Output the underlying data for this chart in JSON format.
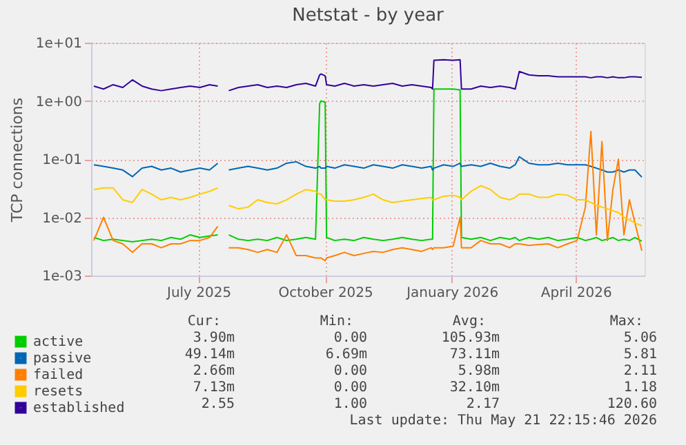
{
  "chart_data": {
    "type": "line",
    "title": "Netstat - by year",
    "ylabel": "TCP connections",
    "log": "y",
    "grid": true,
    "legend": "bottom left",
    "line_style": "solid",
    "marker": "none",
    "xlim": [
      "2025-04-14",
      "2026-05-21"
    ],
    "xticks": [
      {
        "value": "2025-07-01",
        "label": "July 2025"
      },
      {
        "value": "2025-10-01",
        "label": "October 2025"
      },
      {
        "value": "2026-01-01",
        "label": "January 2026"
      },
      {
        "value": "2026-04-01",
        "label": "April 2026"
      }
    ],
    "ylim": [
      0.001,
      10
    ],
    "yticks": [
      {
        "value": 0.001,
        "label": "1e-03"
      },
      {
        "value": 0.01,
        "label": "1e-02"
      },
      {
        "value": 0.1,
        "label": "1e-01"
      },
      {
        "value": 1,
        "label": "1e+00"
      },
      {
        "value": 10,
        "label": "1e+01"
      }
    ],
    "x": [
      "2025-04-16",
      "2025-04-23",
      "2025-04-30",
      "2025-05-07",
      "2025-05-14",
      "2025-05-21",
      "2025-05-28",
      "2025-06-04",
      "2025-06-11",
      "2025-06-18",
      "2025-06-25",
      "2025-07-02",
      "2025-07-09",
      "2025-07-15",
      "2025-07-19",
      "2025-07-23",
      "2025-07-30",
      "2025-08-06",
      "2025-08-13",
      "2025-08-20",
      "2025-08-27",
      "2025-09-03",
      "2025-09-10",
      "2025-09-17",
      "2025-09-24",
      "2025-09-27",
      "2025-09-28",
      "2025-10-01",
      "2025-10-02",
      "2025-10-08",
      "2025-10-15",
      "2025-10-22",
      "2025-10-29",
      "2025-11-05",
      "2025-11-12",
      "2025-11-19",
      "2025-11-26",
      "2025-12-03",
      "2025-12-10",
      "2025-12-17",
      "2025-12-18",
      "2025-12-19",
      "2025-12-26",
      "2026-01-02",
      "2026-01-07",
      "2026-01-08",
      "2026-01-15",
      "2026-01-22",
      "2026-01-29",
      "2026-02-05",
      "2026-02-12",
      "2026-02-16",
      "2026-02-19",
      "2026-02-26",
      "2026-03-05",
      "2026-03-12",
      "2026-03-19",
      "2026-03-26",
      "2026-04-02",
      "2026-04-08",
      "2026-04-12",
      "2026-04-16",
      "2026-04-20",
      "2026-04-24",
      "2026-04-28",
      "2026-05-02",
      "2026-05-06",
      "2026-05-10",
      "2026-05-14",
      "2026-05-19"
    ],
    "series": [
      {
        "name": "active",
        "color": "#00cc00",
        "values": [
          0.0045,
          0.004,
          0.0042,
          0.004,
          0.0038,
          0.004,
          0.0042,
          0.004,
          0.0045,
          0.0042,
          0.005,
          0.0045,
          0.0048,
          0.005,
          null,
          0.005,
          0.0042,
          0.004,
          0.0042,
          0.004,
          0.0045,
          0.004,
          0.0042,
          0.0045,
          0.0042,
          0.9,
          1.0,
          0.95,
          0.0045,
          0.004,
          0.0042,
          0.004,
          0.0045,
          0.0042,
          0.004,
          0.0042,
          0.0045,
          0.0042,
          0.004,
          0.0042,
          0.0042,
          1.6,
          1.6,
          1.6,
          1.55,
          0.0045,
          0.0042,
          0.0045,
          0.004,
          0.0045,
          0.0042,
          0.0045,
          0.004,
          0.0045,
          0.0042,
          0.0045,
          0.004,
          0.0042,
          0.0045,
          0.004,
          0.0042,
          0.0045,
          0.004,
          0.0042,
          0.0045,
          0.004,
          0.0042,
          0.004,
          0.0045,
          0.0039
        ]
      },
      {
        "name": "passive",
        "color": "#0066b3",
        "values": [
          0.08,
          0.075,
          0.07,
          0.065,
          0.05,
          0.07,
          0.075,
          0.065,
          0.07,
          0.06,
          0.065,
          0.07,
          0.065,
          0.085,
          null,
          0.065,
          0.07,
          0.075,
          0.07,
          0.065,
          0.07,
          0.085,
          0.09,
          0.075,
          0.07,
          0.075,
          0.07,
          0.07,
          0.075,
          0.07,
          0.08,
          0.075,
          0.07,
          0.08,
          0.075,
          0.07,
          0.08,
          0.075,
          0.07,
          0.075,
          0.065,
          0.07,
          0.08,
          0.075,
          0.085,
          0.075,
          0.08,
          0.075,
          0.085,
          0.075,
          0.07,
          0.08,
          0.11,
          0.085,
          0.08,
          0.08,
          0.085,
          0.08,
          0.08,
          0.08,
          0.075,
          0.07,
          0.065,
          0.06,
          0.06,
          0.065,
          0.06,
          0.065,
          0.065,
          0.049
        ]
      },
      {
        "name": "failed",
        "color": "#ff8000",
        "values": [
          0.004,
          0.01,
          0.004,
          0.0035,
          0.0025,
          0.0035,
          0.0035,
          0.003,
          0.0035,
          0.0035,
          0.004,
          0.004,
          0.0045,
          0.007,
          null,
          0.003,
          0.003,
          0.0028,
          0.0025,
          0.0028,
          0.0025,
          0.005,
          0.0022,
          0.0022,
          0.002,
          0.002,
          0.002,
          0.0018,
          0.002,
          0.0022,
          0.0025,
          0.0022,
          0.0024,
          0.0026,
          0.0025,
          0.0028,
          0.003,
          0.0028,
          0.0026,
          0.003,
          0.0028,
          0.003,
          0.003,
          0.0032,
          0.01,
          0.003,
          0.003,
          0.004,
          0.0035,
          0.0035,
          0.003,
          0.0035,
          0.0035,
          0.0033,
          0.0034,
          0.0035,
          0.003,
          0.0035,
          0.004,
          0.015,
          0.3,
          0.005,
          0.2,
          0.004,
          0.03,
          0.1,
          0.005,
          0.02,
          0.008,
          0.00266
        ]
      },
      {
        "name": "resets",
        "color": "#ffcc00",
        "values": [
          0.03,
          0.032,
          0.032,
          0.02,
          0.018,
          0.03,
          0.025,
          0.02,
          0.022,
          0.02,
          0.022,
          0.025,
          0.028,
          0.032,
          null,
          0.016,
          0.014,
          0.015,
          0.02,
          0.018,
          0.017,
          0.02,
          0.025,
          0.03,
          0.028,
          0.025,
          0.025,
          0.02,
          0.02,
          0.019,
          0.019,
          0.02,
          0.022,
          0.025,
          0.02,
          0.018,
          0.019,
          0.02,
          0.021,
          0.022,
          0.02,
          0.02,
          0.023,
          0.024,
          0.022,
          0.02,
          0.028,
          0.035,
          0.03,
          0.022,
          0.02,
          0.022,
          0.025,
          0.025,
          0.022,
          0.022,
          0.025,
          0.024,
          0.02,
          0.02,
          0.018,
          0.016,
          0.015,
          0.014,
          0.013,
          0.012,
          0.01,
          0.009,
          0.008,
          0.00713
        ]
      },
      {
        "name": "established",
        "color": "#330099",
        "values": [
          1.8,
          1.6,
          1.9,
          1.7,
          2.3,
          1.8,
          1.6,
          1.5,
          1.6,
          1.7,
          1.8,
          1.7,
          1.9,
          1.8,
          null,
          1.5,
          1.7,
          1.8,
          1.9,
          1.7,
          1.8,
          1.7,
          1.9,
          2.0,
          1.8,
          2.8,
          2.9,
          2.7,
          1.9,
          1.8,
          2.0,
          1.8,
          1.9,
          1.8,
          1.9,
          2.0,
          1.8,
          1.9,
          1.8,
          1.7,
          1.6,
          5.0,
          5.1,
          5.0,
          5.1,
          1.6,
          1.6,
          1.8,
          1.7,
          1.8,
          1.7,
          1.6,
          3.2,
          2.8,
          2.7,
          2.7,
          2.6,
          2.6,
          2.6,
          2.6,
          2.5,
          2.6,
          2.6,
          2.5,
          2.6,
          2.5,
          2.5,
          2.6,
          2.6,
          2.55
        ]
      }
    ],
    "annotations": [
      "Cur:",
      "Min:",
      "Avg:",
      "Max:",
      "3.90m",
      "0.00",
      "105.93m",
      "5.06",
      "49.14m",
      "6.69m",
      "73.11m",
      "5.81",
      "2.66m",
      "0.00",
      "5.98m",
      "2.11",
      "7.13m",
      "0.00",
      "32.10m",
      "1.18",
      "2.55",
      "1.00",
      "2.17",
      "120.60",
      "Last update: Thu May 21 22:15:46 2026"
    ]
  }
}
